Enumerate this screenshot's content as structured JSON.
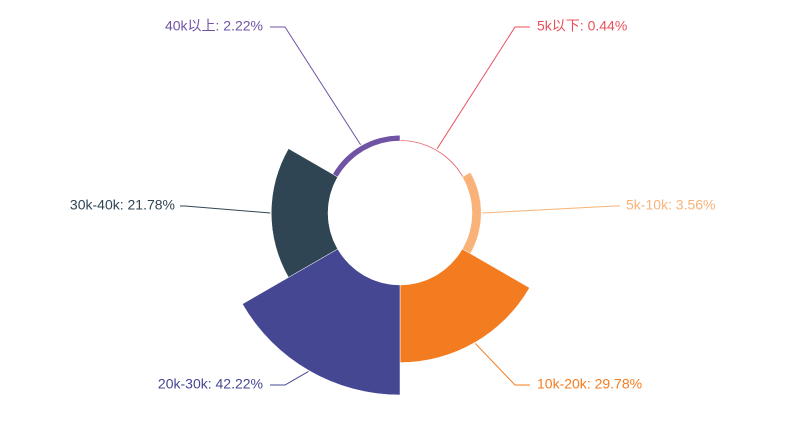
{
  "chart_data": {
    "type": "pie",
    "subtype": "rose",
    "title": "",
    "slices": [
      {
        "name": "5k以下",
        "value": 0.44,
        "color": "#e8505b",
        "label": "5k以下: 0.44%"
      },
      {
        "name": "5k-10k",
        "value": 3.56,
        "color": "#f9b379",
        "label": "5k-10k: 3.56%"
      },
      {
        "name": "10k-20k",
        "value": 29.78,
        "color": "#f47c20",
        "label": "10k-20k: 29.78%"
      },
      {
        "name": "20k-30k",
        "value": 42.22,
        "color": "#454793",
        "label": "20k-30k: 42.22%"
      },
      {
        "name": "30k-40k",
        "value": 21.78,
        "color": "#2f4554",
        "label": "30k-40k: 21.78%"
      },
      {
        "name": "40k以上",
        "value": 2.22,
        "color": "#7053a4",
        "label": "40k以上: 2.22%"
      }
    ]
  }
}
